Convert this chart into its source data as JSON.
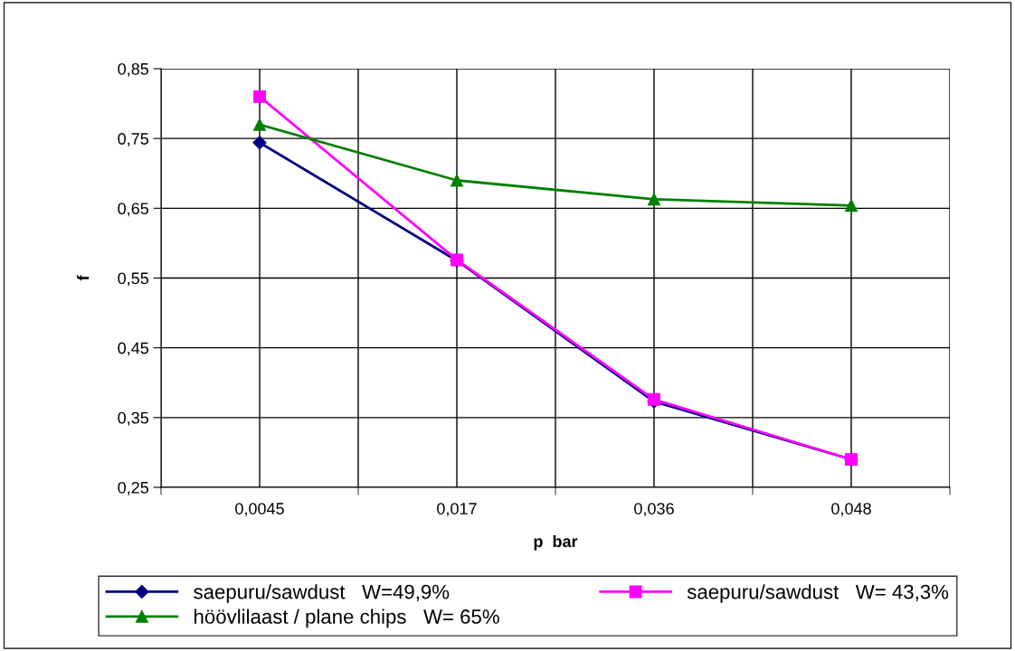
{
  "chart_data": {
    "type": "line",
    "xlabel": "p  bar",
    "ylabel": "f",
    "categories": [
      "0,0045",
      "0,017",
      "0,036",
      "0,048"
    ],
    "series": [
      {
        "name": "saepuru/sawdust   W=49,9%",
        "color": "#000080",
        "marker": "diamond",
        "values": [
          0.744,
          0.575,
          0.373,
          0.29
        ]
      },
      {
        "name": "saepuru/sawdust   W= 43,3%",
        "color": "#ff00ff",
        "marker": "square",
        "values": [
          0.81,
          0.576,
          0.376,
          0.29
        ]
      },
      {
        "name": "höövlilaast / plane chips   W= 65%",
        "color": "#008000",
        "marker": "triangle",
        "values": [
          0.77,
          0.69,
          0.663,
          0.654
        ]
      }
    ],
    "ylim": [
      0.25,
      0.85
    ],
    "yticks": [
      {
        "value": 0.25,
        "label": "0,25"
      },
      {
        "value": 0.35,
        "label": "0,35"
      },
      {
        "value": 0.45,
        "label": "0,45"
      },
      {
        "value": 0.55,
        "label": "0,55"
      },
      {
        "value": 0.65,
        "label": "0,65"
      },
      {
        "value": 0.75,
        "label": "0,75"
      },
      {
        "value": 0.85,
        "label": "0,85"
      }
    ],
    "grid": true,
    "legend": "bottom"
  }
}
